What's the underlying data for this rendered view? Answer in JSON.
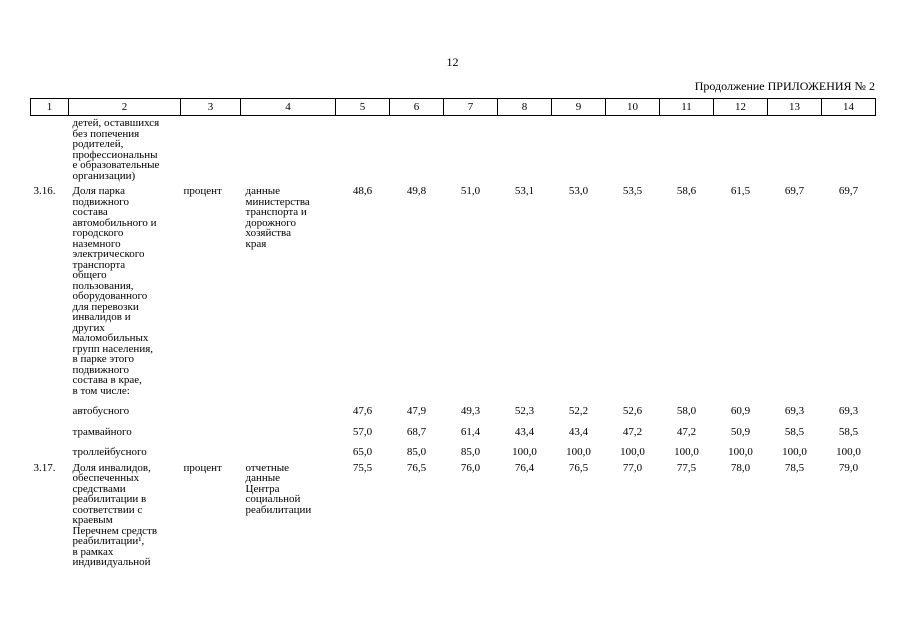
{
  "page": {
    "number": "12",
    "header_right": "Продолжение ПРИЛОЖЕНИЯ № 2"
  },
  "table": {
    "column_numbers": [
      "1",
      "2",
      "3",
      "4",
      "5",
      "6",
      "7",
      "8",
      "9",
      "10",
      "11",
      "12",
      "13",
      "14"
    ],
    "rows": [
      {
        "type": "cont",
        "num": "",
        "name": "детей, оставшихся\nбез попечения\nродителей,\nпрофессиональны\nе образовательные\nорганизации)",
        "unit": "",
        "source": "",
        "values": [
          "",
          "",
          "",
          "",
          "",
          "",
          "",
          "",
          "",
          ""
        ]
      },
      {
        "type": "main",
        "num": "3.16.",
        "name": "Доля парка\nподвижного\nсостава\nавтомобильного и\nгородского\nназемного\nэлектрического\nтранспорта\nобщего\nпользования,\nоборудованного\nдля перевозки\nинвалидов и\nдругих\nмаломобильных\nгрупп населения,\nв парке этого\nподвижного\nсостава в крае,\nв том числе:",
        "unit": "процент",
        "source": "данные\nминистерства\nтранспорта и\nдорожного\nхозяйства\nкрая",
        "values": [
          "48,6",
          "49,8",
          "51,0",
          "53,1",
          "53,0",
          "53,5",
          "58,6",
          "61,5",
          "69,7",
          "69,7"
        ]
      },
      {
        "type": "sub",
        "num": "",
        "name": "автобусного",
        "unit": "",
        "source": "",
        "values": [
          "47,6",
          "47,9",
          "49,3",
          "52,3",
          "52,2",
          "52,6",
          "58,0",
          "60,9",
          "69,3",
          "69,3"
        ]
      },
      {
        "type": "sub",
        "num": "",
        "name": "трамвайного",
        "unit": "",
        "source": "",
        "values": [
          "57,0",
          "68,7",
          "61,4",
          "43,4",
          "43,4",
          "47,2",
          "47,2",
          "50,9",
          "58,5",
          "58,5"
        ]
      },
      {
        "type": "sub",
        "num": "",
        "name": "троллейбусного",
        "unit": "",
        "source": "",
        "values": [
          "65,0",
          "85,0",
          "85,0",
          "100,0",
          "100,0",
          "100,0",
          "100,0",
          "100,0",
          "100,0",
          "100,0"
        ]
      },
      {
        "type": "main",
        "num": "3.17.",
        "name": "Доля инвалидов,\nобеспеченных\nсредствами\nреабилитации в\nсоответствии с\nкраевым\nПеречнем средств\nреабилитации¹,\nв рамках\nиндивидуальной",
        "unit": "процент",
        "source": "отчетные\nданные\nЦентра\nсоциальной\nреабилитации",
        "values": [
          "75,5",
          "76,5",
          "76,0",
          "76,4",
          "76,5",
          "77,0",
          "77,5",
          "78,0",
          "78,5",
          "79,0"
        ]
      }
    ]
  }
}
